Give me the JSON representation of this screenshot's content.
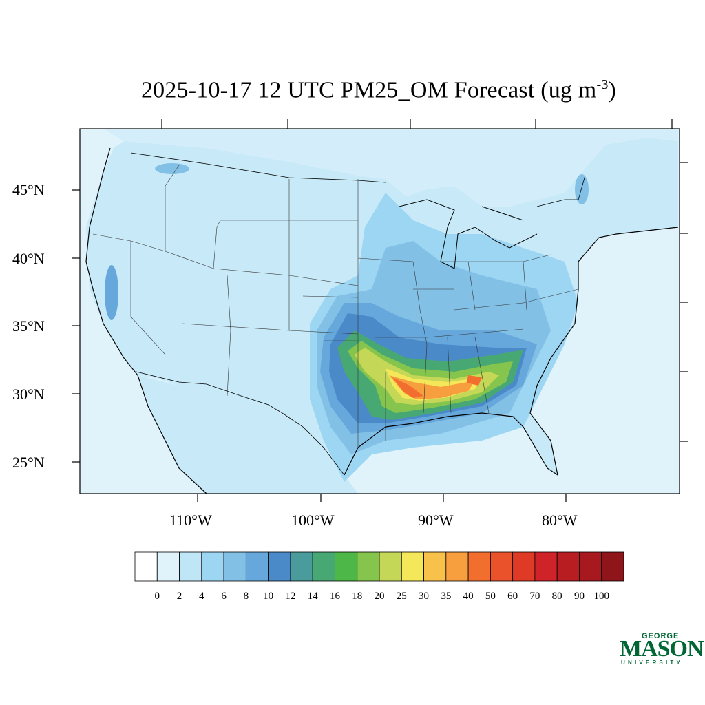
{
  "title": {
    "main": "2025-10-17 12 UTC PM25_OM Forecast (ug m",
    "superscript": "-3",
    "close": ")"
  },
  "axes": {
    "lat_labels": [
      "45°N",
      "40°N",
      "35°N",
      "30°N",
      "25°N"
    ],
    "lon_labels": [
      "110°W",
      "100°W",
      "90°W",
      "80°W"
    ]
  },
  "colorbar": {
    "ticks": [
      "0",
      "2",
      "4",
      "6",
      "8",
      "10",
      "12",
      "14",
      "16",
      "18",
      "20",
      "25",
      "30",
      "35",
      "40",
      "50",
      "60",
      "70",
      "80",
      "90",
      "100"
    ],
    "colors": [
      "#ffffff",
      "#e0f3fb",
      "#bfe6f7",
      "#9dd6f3",
      "#82c0e6",
      "#66a8db",
      "#4b8ac9",
      "#4a9b9b",
      "#48a873",
      "#4db848",
      "#86c54d",
      "#c5d756",
      "#f5e75a",
      "#f7c14a",
      "#f79e3f",
      "#f26e2f",
      "#e9522b",
      "#de3a26",
      "#d02229",
      "#b81d22",
      "#a8191f",
      "#8e1519"
    ]
  },
  "map_colors": {
    "ocean": "#e0f3fb",
    "land_base": "#bfe6f7"
  },
  "logo": {
    "george": "GEORGE",
    "mason": "MASON",
    "university": "UNIVERSITY",
    "color": "#006633"
  }
}
